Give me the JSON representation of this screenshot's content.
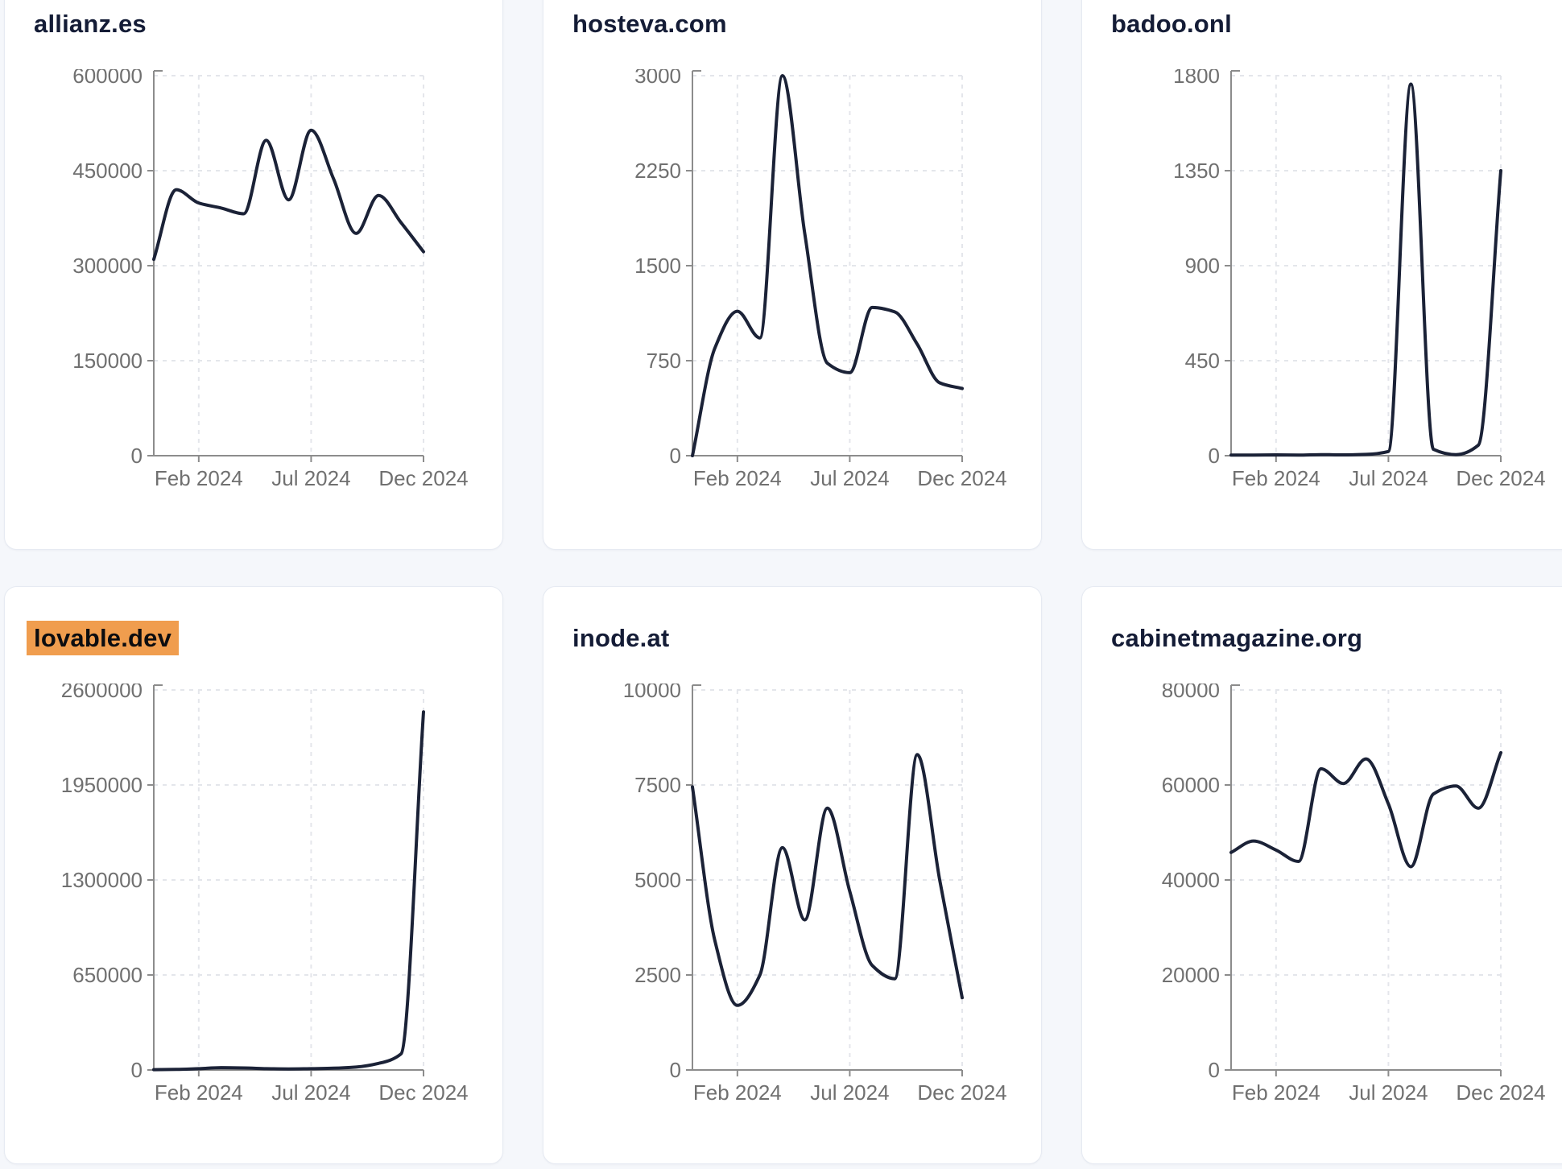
{
  "page": {
    "background_color": "#f5f7fb",
    "card_background": "#ffffff",
    "title_color": "#141c36",
    "highlight_color": "#f09d4e",
    "line_color": "#1b2237",
    "axis_color": "#8c8c8c",
    "tick_label_color": "#707070",
    "grid_color": "#e4e6eb"
  },
  "layout": {
    "x_tick_indices": [
      2,
      7,
      12
    ],
    "grid": "dashed",
    "legend": "none"
  },
  "chart_data": [
    {
      "type": "line",
      "title": "allianz.es",
      "title_highlighted": false,
      "x": [
        "Dec 2023",
        "Jan 2024",
        "Feb 2024",
        "Mar 2024",
        "Apr 2024",
        "May 2024",
        "Jun 2024",
        "Jul 2024",
        "Aug 2024",
        "Sep 2024",
        "Oct 2024",
        "Nov 2024",
        "Dec 2024"
      ],
      "x_tick_labels": [
        "Feb 2024",
        "Jul 2024",
        "Dec 2024"
      ],
      "values": [
        310000,
        420000,
        399000,
        391000,
        382000,
        498000,
        404000,
        514000,
        437000,
        351000,
        411000,
        368000,
        322000
      ],
      "ylim": [
        0,
        600000
      ],
      "y_ticks": [
        0,
        150000,
        300000,
        450000,
        600000
      ]
    },
    {
      "type": "line",
      "title": "hosteva.com",
      "title_highlighted": false,
      "x": [
        "Dec 2023",
        "Jan 2024",
        "Feb 2024",
        "Mar 2024",
        "Apr 2024",
        "May 2024",
        "Jun 2024",
        "Jul 2024",
        "Aug 2024",
        "Sep 2024",
        "Oct 2024",
        "Nov 2024",
        "Dec 2024"
      ],
      "x_tick_labels": [
        "Feb 2024",
        "Jul 2024",
        "Dec 2024"
      ],
      "values": [
        0,
        850,
        1140,
        930,
        3000,
        1750,
        730,
        655,
        1170,
        1135,
        880,
        575,
        530
      ],
      "ylim": [
        0,
        3000
      ],
      "y_ticks": [
        0,
        750,
        1500,
        2250,
        3000
      ]
    },
    {
      "type": "line",
      "title": "badoo.onl",
      "title_highlighted": false,
      "x": [
        "Dec 2023",
        "Jan 2024",
        "Feb 2024",
        "Mar 2024",
        "Apr 2024",
        "May 2024",
        "Jun 2024",
        "Jul 2024",
        "Aug 2024",
        "Sep 2024",
        "Oct 2024",
        "Nov 2024",
        "Dec 2024"
      ],
      "x_tick_labels": [
        "Feb 2024",
        "Jul 2024",
        "Dec 2024"
      ],
      "values": [
        3,
        3,
        4,
        3,
        5,
        4,
        6,
        20,
        1760,
        30,
        5,
        50,
        1350
      ],
      "ylim": [
        0,
        1800
      ],
      "y_ticks": [
        0,
        450,
        900,
        1350,
        1800
      ]
    },
    {
      "type": "line",
      "title": "lovable.dev",
      "title_highlighted": true,
      "x": [
        "Dec 2023",
        "Jan 2024",
        "Feb 2024",
        "Mar 2024",
        "Apr 2024",
        "May 2024",
        "Jun 2024",
        "Jul 2024",
        "Aug 2024",
        "Sep 2024",
        "Oct 2024",
        "Nov 2024",
        "Dec 2024"
      ],
      "x_tick_labels": [
        "Feb 2024",
        "Jul 2024",
        "Dec 2024"
      ],
      "values": [
        2000,
        4000,
        9000,
        16000,
        14000,
        9000,
        7000,
        9000,
        12000,
        20000,
        45000,
        110000,
        2450000
      ],
      "ylim": [
        0,
        2600000
      ],
      "y_ticks": [
        0,
        650000,
        1300000,
        1950000,
        2600000
      ]
    },
    {
      "type": "line",
      "title": "inode.at",
      "title_highlighted": false,
      "x": [
        "Dec 2023",
        "Jan 2024",
        "Feb 2024",
        "Mar 2024",
        "Apr 2024",
        "May 2024",
        "Jun 2024",
        "Jul 2024",
        "Aug 2024",
        "Sep 2024",
        "Oct 2024",
        "Nov 2024",
        "Dec 2024"
      ],
      "x_tick_labels": [
        "Feb 2024",
        "Jul 2024",
        "Dec 2024"
      ],
      "values": [
        7450,
        3400,
        1700,
        2500,
        5850,
        3950,
        6890,
        4700,
        2750,
        2400,
        8300,
        5000,
        1900
      ],
      "ylim": [
        0,
        10000
      ],
      "y_ticks": [
        0,
        2500,
        5000,
        7500,
        10000
      ]
    },
    {
      "type": "line",
      "title": "cabinetmagazine.org",
      "title_highlighted": false,
      "x": [
        "Dec 2023",
        "Jan 2024",
        "Feb 2024",
        "Mar 2024",
        "Apr 2024",
        "May 2024",
        "Jun 2024",
        "Jul 2024",
        "Aug 2024",
        "Sep 2024",
        "Oct 2024",
        "Nov 2024",
        "Dec 2024"
      ],
      "x_tick_labels": [
        "Feb 2024",
        "Jul 2024",
        "Dec 2024"
      ],
      "values": [
        45800,
        48200,
        46300,
        43900,
        63400,
        60300,
        65500,
        56000,
        42800,
        58100,
        59800,
        55100,
        66800
      ],
      "ylim": [
        0,
        80000
      ],
      "y_ticks": [
        0,
        20000,
        40000,
        60000,
        80000
      ]
    }
  ]
}
